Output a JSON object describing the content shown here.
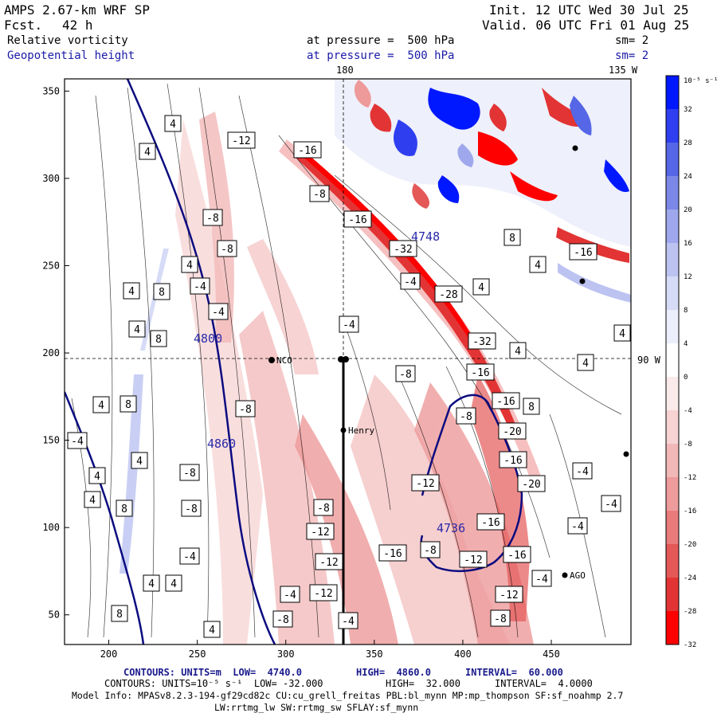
{
  "header": {
    "model": "AMPS 2.67-km WRF SP",
    "fcst_label": "Fcst.",
    "fcst_value": "42 h",
    "init": "Init. 12 UTC Wed 30 Jul 25",
    "valid": "Valid. 06 UTC Fri 01 Aug 25",
    "field1": "Relative vorticity",
    "field2": "Geopotential height",
    "level1": "at pressure =  500 hPa",
    "level2": "at pressure =  500 hPa",
    "sm1": "sm= 2",
    "sm2": "sm= 2"
  },
  "map_labels": {
    "lon_top_180": "180",
    "lon_top_135w": "135 W",
    "lon_right_90w": "90 W",
    "stations": [
      "NCO",
      "Henry",
      "AGO"
    ]
  },
  "colorbar": {
    "unit": "10⁻⁵ s⁻¹",
    "ticks": [
      "32",
      "28",
      "24",
      "20",
      "16",
      "12",
      "8",
      "4",
      "0",
      "-4",
      "-8",
      "-12",
      "-16",
      "-20",
      "-24",
      "-28",
      "-32"
    ],
    "colors": [
      "#0018ff",
      "#2f3ff0",
      "#5566e6",
      "#7c88e8",
      "#9fa8ec",
      "#bcc3f1",
      "#d6dbf7",
      "#eceffb",
      "#ffffff",
      "#fbeaea",
      "#f7d3d3",
      "#f2b8b8",
      "#ee9b9b",
      "#e97b7b",
      "#e45858",
      "#e23434",
      "#ff0000"
    ]
  },
  "chart_data": {
    "type": "heatmap",
    "xlim": [
      175,
      495
    ],
    "ylim": [
      33,
      357
    ],
    "xticks": [
      "200",
      "250",
      "300",
      "350",
      "400",
      "450"
    ],
    "yticks": [
      "50",
      "100",
      "150",
      "200",
      "250",
      "300",
      "350"
    ],
    "height_contours": {
      "unit": "m",
      "low": 4740.0,
      "high": 4860.0,
      "interval": 60.0,
      "labels": [
        "4860",
        "4800",
        "4748",
        "4736"
      ]
    },
    "vorticity_contours": {
      "low": -32.0,
      "high": 32.0,
      "interval": 4.0,
      "labels": [
        "4",
        "8",
        "-4",
        "-8",
        "-12",
        "-16",
        "-20",
        "-28",
        "-32"
      ]
    }
  },
  "footer": {
    "line1_a": "CONTOURS: UNITS=m  LOW=  4740.0",
    "line1_b": "HIGH=  4860.0",
    "line1_c": "INTERVAL=  60.000",
    "line2_a": "CONTOURS: UNITS=10⁻⁵ s⁻¹  LOW= -32.000",
    "line2_b": "HIGH=  32.000",
    "line2_c": "INTERVAL=  4.0000",
    "line3": "Model Info: MPASv8.2.3-194-gf29cd82c CU:cu_grell_freitas PBL:bl_mynn MP:mp_thompson SF:sf_noahmp 2.7",
    "line4": "LW:rrtmg_lw SW:rrtmg_sw SFLAY:sf_mynn"
  }
}
